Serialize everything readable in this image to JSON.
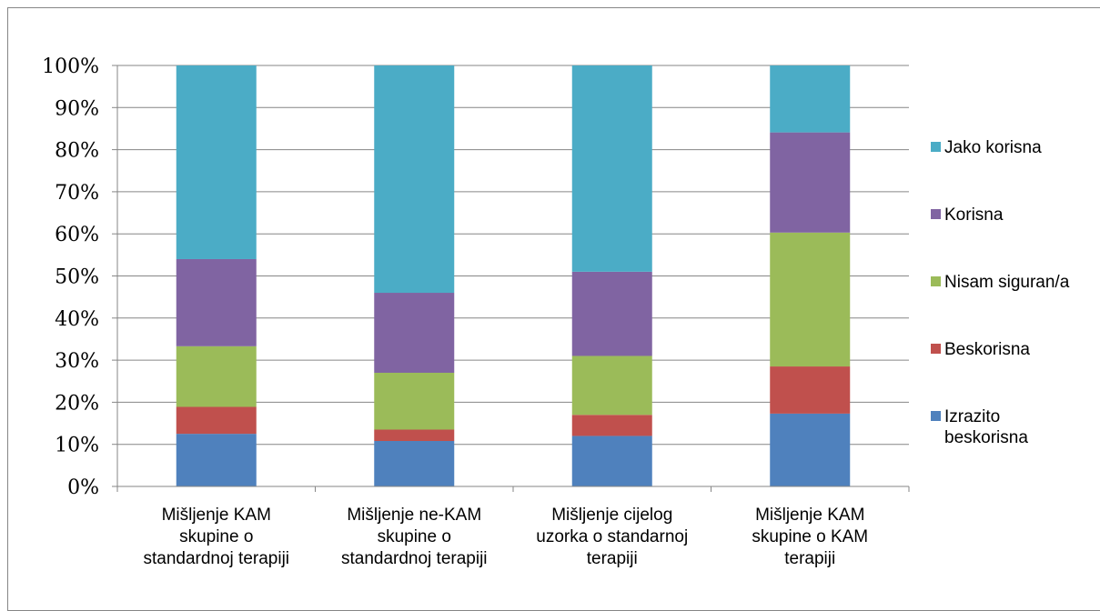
{
  "chart_data": {
    "type": "bar",
    "stacked": true,
    "percent": true,
    "categories": [
      [
        "Mišljenje KAM",
        "skupine o",
        "standardnoj terapiji"
      ],
      [
        "Mišljenje ne-KAM",
        "skupine o",
        "standardnoj terapiji"
      ],
      [
        "Mišljenje cijelog",
        "uzorka o standarnoj",
        "terapiji"
      ],
      [
        "Mišljenje KAM",
        "skupine o KAM",
        "terapiji"
      ]
    ],
    "series": [
      {
        "name": "Izrazito beskorisna",
        "legend_lines": [
          "Izrazito",
          "beskorisna"
        ],
        "color": "#4F81BD",
        "values": [
          12.5,
          10.8,
          12.0,
          17.3
        ]
      },
      {
        "name": "Beskorisna",
        "legend_lines": [
          "Beskorisna"
        ],
        "color": "#C0504D",
        "values": [
          6.4,
          2.7,
          5.0,
          11.2
        ]
      },
      {
        "name": "Nisam siguran/a",
        "legend_lines": [
          "Nisam siguran/a"
        ],
        "color": "#9BBB59",
        "values": [
          14.4,
          13.5,
          14.0,
          31.8
        ]
      },
      {
        "name": "Korisna",
        "legend_lines": [
          "Korisna"
        ],
        "color": "#8064A2",
        "values": [
          20.7,
          19.0,
          20.0,
          23.8
        ]
      },
      {
        "name": "Jako korisna",
        "legend_lines": [
          "Jako korisna"
        ],
        "color": "#4BACC6",
        "values": [
          46.0,
          54.0,
          49.0,
          15.9
        ]
      }
    ],
    "yticks": [
      "0%",
      "10%",
      "20%",
      "30%",
      "40%",
      "50%",
      "60%",
      "70%",
      "80%",
      "90%",
      "100%"
    ],
    "ylim": [
      0,
      100
    ],
    "grid": true,
    "legend": "right",
    "title": "",
    "xlabel": "",
    "ylabel": ""
  }
}
